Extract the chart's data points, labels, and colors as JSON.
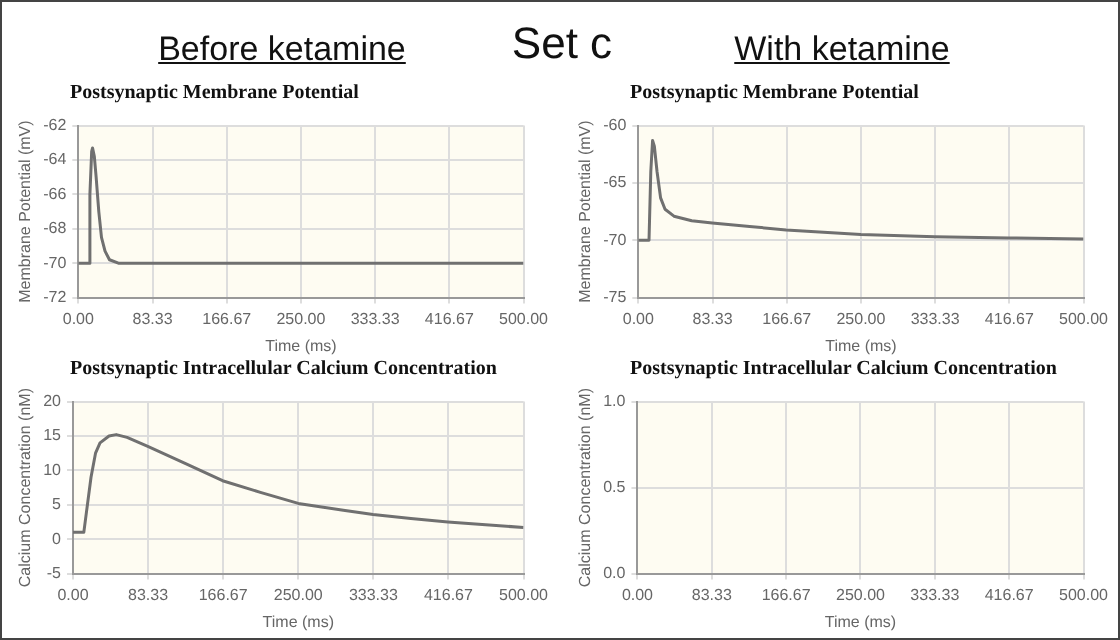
{
  "chart_data": [
    {
      "type": "other",
      "annotations": [
        "Before ketamine",
        "Set c",
        "With ketamine"
      ]
    },
    {
      "type": "line",
      "title": "Postsynaptic Membrane Potential",
      "xlabel": "Time (ms)",
      "ylabel": "Membrane Potential (mV)",
      "grid": true,
      "legend": false,
      "marker": "none",
      "x": [
        0,
        12,
        13,
        15,
        16,
        18,
        20,
        23,
        26,
        30,
        35,
        45,
        500
      ],
      "series": [
        {
          "color": "#707070",
          "values": [
            -70,
            -70,
            -66,
            -63.5,
            -63.3,
            -63.8,
            -65,
            -67,
            -68.5,
            -69.3,
            -69.8,
            -70,
            -70
          ]
        }
      ],
      "xlim": [
        0,
        500
      ],
      "xticks": [
        {
          "value": 0,
          "label": "0.00"
        },
        83.33,
        166.67,
        {
          "value": 250,
          "label": "250.00"
        },
        333.33,
        416.67,
        {
          "value": 500,
          "label": "500.00"
        }
      ],
      "ylim": [
        -72,
        -62
      ],
      "yticks": [
        -72,
        -70,
        -68,
        -66,
        -64,
        -62
      ]
    },
    {
      "type": "line",
      "title": "Postsynaptic Membrane Potential",
      "xlabel": "Time (ms)",
      "ylabel": "Membrane Potential (mV)",
      "grid": true,
      "legend": false,
      "marker": "none",
      "x": [
        0,
        12,
        14,
        16,
        18,
        21,
        25,
        30,
        40,
        60,
        83,
        125,
        166,
        250,
        333,
        416,
        500
      ],
      "series": [
        {
          "color": "#707070",
          "values": [
            -70,
            -70,
            -64,
            -61.3,
            -61.8,
            -64,
            -66.3,
            -67.3,
            -67.9,
            -68.3,
            -68.5,
            -68.8,
            -69.1,
            -69.5,
            -69.7,
            -69.8,
            -69.9
          ]
        }
      ],
      "xlim": [
        0,
        500
      ],
      "xticks": [
        {
          "value": 0,
          "label": "0.00"
        },
        83.33,
        166.67,
        {
          "value": 250,
          "label": "250.00"
        },
        333.33,
        416.67,
        {
          "value": 500,
          "label": "500.00"
        }
      ],
      "ylim": [
        -75,
        -60
      ],
      "yticks": [
        -75,
        -70,
        -65,
        -60
      ]
    },
    {
      "type": "line",
      "title": "Postsynaptic Intracellular Calcium Concentration",
      "xlabel": "Time (ms)",
      "ylabel": "Calcium Concentration (nM)",
      "grid": true,
      "legend": false,
      "marker": "none",
      "x": [
        0,
        12,
        15,
        20,
        25,
        30,
        40,
        48,
        60,
        83,
        125,
        166,
        208,
        250,
        300,
        333,
        375,
        416,
        458,
        500
      ],
      "series": [
        {
          "color": "#707070",
          "values": [
            1,
            1,
            4,
            9,
            12.5,
            14,
            15,
            15.2,
            14.8,
            13.5,
            11,
            8.5,
            6.8,
            5.2,
            4.2,
            3.6,
            3,
            2.5,
            2.1,
            1.7
          ]
        }
      ],
      "xlim": [
        0,
        500
      ],
      "xticks": [
        {
          "value": 0,
          "label": "0.00"
        },
        83.33,
        166.67,
        {
          "value": 250,
          "label": "250.00"
        },
        333.33,
        416.67,
        {
          "value": 500,
          "label": "500.00"
        }
      ],
      "ylim": [
        -5,
        20
      ],
      "yticks": [
        -5,
        0,
        5,
        10,
        15,
        20
      ]
    },
    {
      "type": "line",
      "title": "Postsynaptic Intracellular Calcium Concentration",
      "xlabel": "Time (ms)",
      "ylabel": "Calcium Concentration (nM)",
      "grid": true,
      "legend": false,
      "marker": "none",
      "xlim": [
        0,
        500
      ],
      "xticks": [
        {
          "value": 0,
          "label": "0.00"
        },
        83.33,
        166.67,
        {
          "value": 250,
          "label": "250.00"
        },
        333.33,
        416.67,
        {
          "value": 500,
          "label": "500.00"
        }
      ],
      "ylim": [
        0,
        1
      ],
      "yticks": [
        {
          "value": 0,
          "label": "0.0"
        },
        {
          "value": 0.5,
          "label": "0.5"
        },
        {
          "value": 1,
          "label": "1.0"
        }
      ]
    }
  ]
}
